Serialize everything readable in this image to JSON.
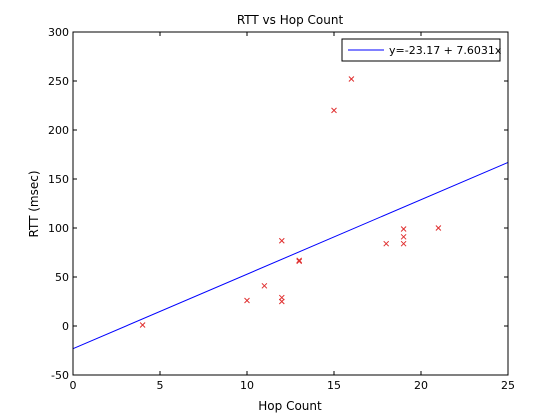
{
  "chart_data": {
    "type": "scatter",
    "title": "RTT vs Hop Count",
    "xlabel": "Hop Count",
    "ylabel": "RTT (msec)",
    "xlim": [
      0,
      25
    ],
    "ylim": [
      -50,
      300
    ],
    "xticks": [
      0,
      5,
      10,
      15,
      20,
      25
    ],
    "yticks": [
      -50,
      0,
      50,
      100,
      150,
      200,
      250,
      300
    ],
    "grid": false,
    "legend_position": "top-right",
    "series": [
      {
        "kind": "scatter",
        "marker": "x",
        "color": "#e03030",
        "points": [
          [
            4,
            1
          ],
          [
            10,
            26
          ],
          [
            11,
            41
          ],
          [
            12,
            25
          ],
          [
            12,
            29
          ],
          [
            12,
            87
          ],
          [
            13,
            66
          ],
          [
            13,
            67
          ],
          [
            15,
            220
          ],
          [
            16,
            252
          ],
          [
            18,
            84
          ],
          [
            19,
            84
          ],
          [
            19,
            91
          ],
          [
            19,
            99
          ],
          [
            21,
            100
          ]
        ]
      },
      {
        "kind": "line",
        "name": "y=-23.17 + 7.6031x",
        "color": "#0000ff",
        "intercept": -23.17,
        "slope": 7.6031
      }
    ]
  }
}
